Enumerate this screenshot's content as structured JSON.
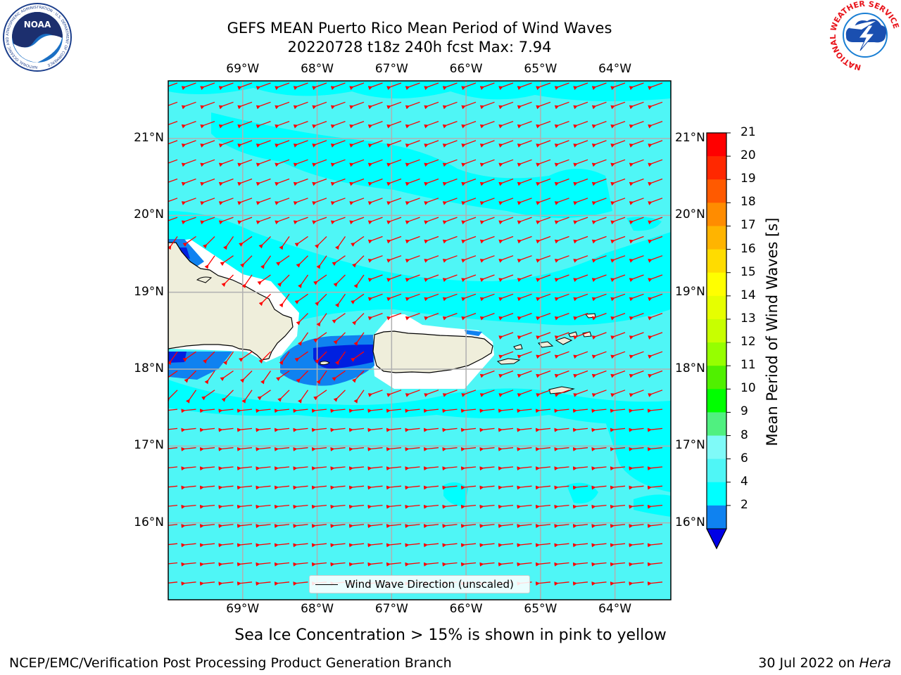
{
  "header": {
    "title_line1": "GEFS MEAN Puerto Rico Mean Period of Wind Waves",
    "title_line2": "20220728 t18z 240h fcst   Max: 7.94"
  },
  "logos": {
    "left": "NOAA",
    "left_ring": "NATIONAL OCEANIC AND ATMOSPHERIC ADMINISTRATION · U.S. DEPARTMENT OF COMMERCE",
    "right_ring": "NATIONAL WEATHER SERVICE"
  },
  "map": {
    "lon_labels": [
      "69°W",
      "68°W",
      "67°W",
      "66°W",
      "65°W",
      "64°W"
    ],
    "lon_values": [
      -69,
      -68,
      -67,
      -66,
      -65,
      -64
    ],
    "lat_labels": [
      "21°N",
      "20°N",
      "19°N",
      "18°N",
      "17°N",
      "16°N"
    ],
    "lat_values": [
      21,
      20,
      19,
      18,
      17,
      16
    ],
    "extent": {
      "lon_min": -70,
      "lon_max": -63.25,
      "lat_min": 15.0,
      "lat_max": 21.75
    },
    "colors": {
      "ocean_main": "#00ffff",
      "ocean_light": "#4ff6f6",
      "ocean_pale": "#7ffaf8",
      "blue_shallow": "#0f82f0",
      "blue_deep": "#0020e0",
      "land": "#efeedb",
      "no_data": "#ffffff",
      "arrow": "#ff0000",
      "grid": "#b0b0b0"
    },
    "arrow_direction": "from east-northeast toward west-southwest"
  },
  "colorbar": {
    "label": "Mean Period of Wind Waves [s]",
    "ticks": [
      "21",
      "20",
      "19",
      "18",
      "17",
      "16",
      "15",
      "14",
      "13",
      "12",
      "11",
      "10",
      "9",
      "8",
      "6",
      "4",
      "2"
    ],
    "colors": [
      "#ff0000",
      "#ff2800",
      "#ff5a00",
      "#ff8c00",
      "#ffb400",
      "#ffdc00",
      "#ffff00",
      "#e6ff00",
      "#c8ff00",
      "#96ff00",
      "#50f000",
      "#00ff00",
      "#50f080",
      "#7ffaf8",
      "#4ff6f6",
      "#00ffff",
      "#0f82f0"
    ],
    "extend_color": "#0000e6"
  },
  "legend": {
    "label": "Wind Wave Direction (unscaled)"
  },
  "note": "Sea Ice Concentration > 15% is shown in pink to yellow",
  "footer": {
    "left": "NCEP/EMC/Verification Post Processing Product Generation Branch",
    "right_prefix": "30 Jul 2022 on ",
    "right_host": "Hera"
  }
}
